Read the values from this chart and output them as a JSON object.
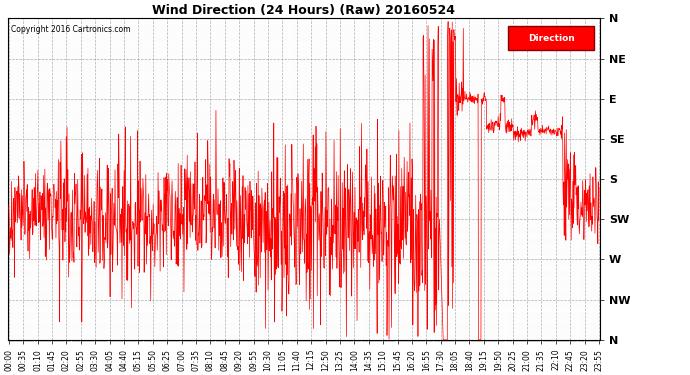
{
  "title": "Wind Direction (24 Hours) (Raw) 20160524",
  "copyright": "Copyright 2016 Cartronics.com",
  "legend_label": "Direction",
  "line_color": "#ff0000",
  "background_color": "#ffffff",
  "grid_color": "#999999",
  "ytick_labels": [
    "N",
    "NE",
    "E",
    "SE",
    "S",
    "SW",
    "W",
    "NW",
    "N"
  ],
  "ytick_values": [
    0,
    45,
    90,
    135,
    180,
    225,
    270,
    315,
    360
  ],
  "ylim": [
    0,
    360
  ],
  "figwidth": 6.9,
  "figheight": 3.75,
  "dpi": 100
}
